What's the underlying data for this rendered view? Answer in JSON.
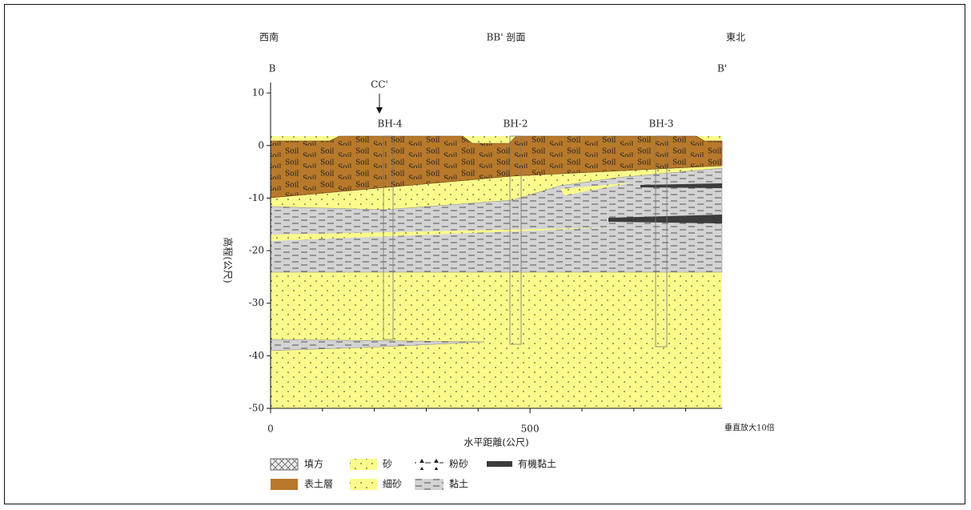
{
  "chart_data": {
    "type": "section",
    "left_label": "西南",
    "title": "BB' 剖面",
    "right_label": "東北",
    "start_label": "B",
    "end_label": "B'",
    "section_mark": "CC'",
    "boreholes": [
      "BH-4",
      "BH-2",
      "BH-3"
    ],
    "y_label": "高程(公尺)",
    "x_label": "水平距離(公尺)",
    "note": "垂直放大10倍",
    "xlim": [
      0,
      870
    ],
    "xticks": [
      0,
      500
    ],
    "xminor": [
      100,
      200,
      300,
      400,
      600,
      700,
      800
    ],
    "ylim": [
      -50,
      12
    ],
    "yticks": [
      10,
      0,
      -10,
      -20,
      -30,
      -40,
      -50
    ]
  },
  "legend": [
    "填方",
    "砂",
    "粉砂",
    "有機黏土",
    "表土層",
    "細砂",
    "黏土"
  ]
}
